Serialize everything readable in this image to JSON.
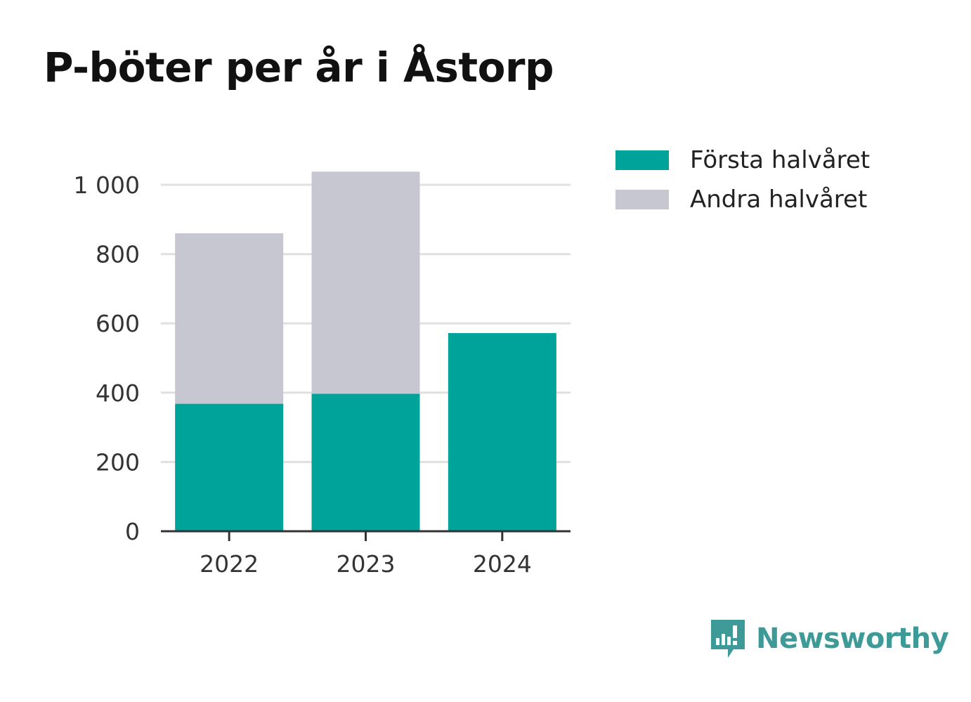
{
  "title": "P-böter per år i Åstorp",
  "colors": {
    "first": "#00a39a",
    "second": "#c7c7d1",
    "grid": "#e0e0e0",
    "axis": "#333333",
    "brand": "#3d9a96"
  },
  "legend": [
    {
      "label": "Första halvåret",
      "color": "#00a39a"
    },
    {
      "label": "Andra halvåret",
      "color": "#c7c7d1"
    }
  ],
  "brand": {
    "name": "Newsworthy",
    "icon": "newsworthy-chart-icon"
  },
  "chart_data": {
    "type": "bar",
    "stacked": true,
    "categories": [
      "2022",
      "2023",
      "2024"
    ],
    "series": [
      {
        "name": "Första halvåret",
        "values": [
          368,
          397,
          572
        ]
      },
      {
        "name": "Andra halvåret",
        "values": [
          492,
          641,
          0
        ]
      }
    ],
    "ylim": [
      0,
      1000
    ],
    "yticks": [
      0,
      200,
      400,
      600,
      800,
      1000
    ],
    "ytick_labels": [
      "0",
      "200",
      "400",
      "600",
      "800",
      "1 000"
    ],
    "grid": true,
    "legend_position": "top-right"
  }
}
